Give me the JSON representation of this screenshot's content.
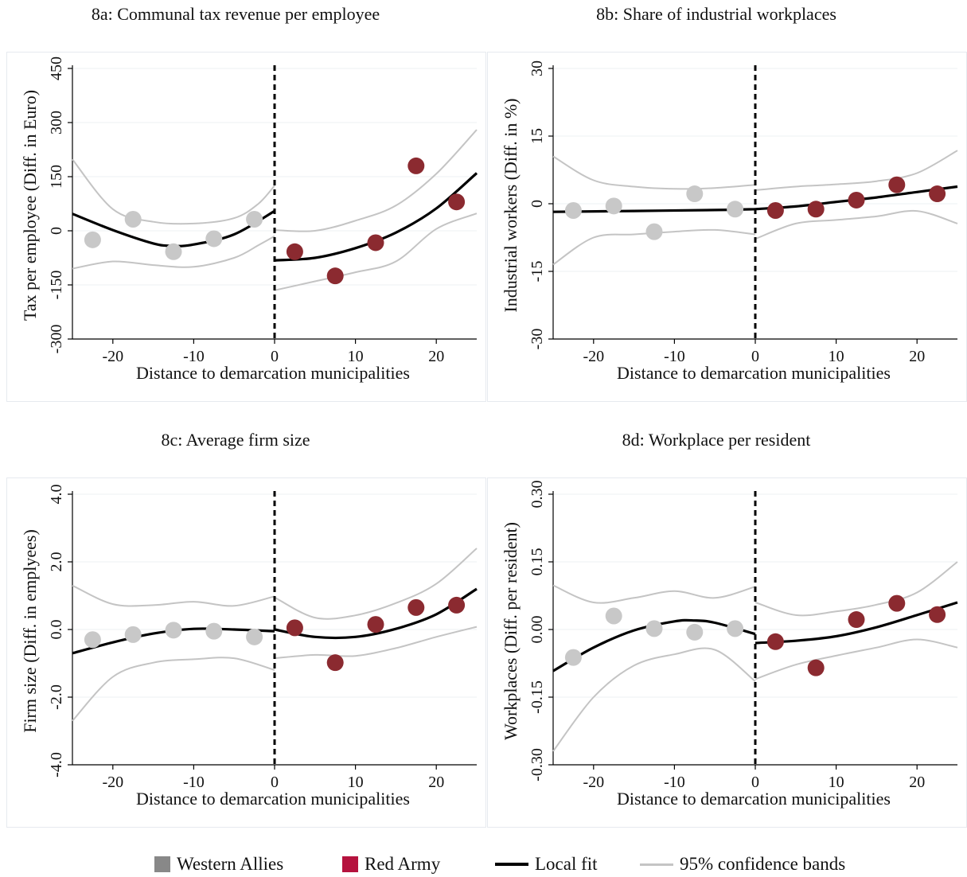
{
  "colors": {
    "western": "#c8c8c8",
    "western_legend": "#888888",
    "red": "#8b2a30",
    "red_legend": "#b5123e",
    "fit": "#000000",
    "band": "#c4c4c4",
    "grid": "#eef0f3"
  },
  "legend": {
    "western": "Western Allies",
    "red": "Red Army",
    "fit": "Local fit",
    "band": "95% confidence bands"
  },
  "chart_data": [
    {
      "id": "a",
      "type": "scatter",
      "title": "8a: Communal tax revenue per employee",
      "xlabel": "Distance to demarcation municipalities",
      "ylabel": "Tax per employee (Diff. in Euro)",
      "xlim": [
        -25,
        25
      ],
      "ylim": [
        -300,
        450
      ],
      "xticks": [
        -20,
        -10,
        0,
        10,
        20
      ],
      "xtick_labels": [
        "-20",
        "-10",
        "0",
        "10",
        "20"
      ],
      "yticks": [
        -300,
        -150,
        0,
        150,
        300,
        450
      ],
      "ytick_labels": [
        "-300",
        "-150",
        "0",
        "150",
        "300",
        "450"
      ],
      "grid": true,
      "cutoff": 0,
      "western_points": [
        [
          -22.5,
          -25
        ],
        [
          -17.5,
          32
        ],
        [
          -12.5,
          -58
        ],
        [
          -7.5,
          -22
        ],
        [
          -2.5,
          32
        ]
      ],
      "red_points": [
        [
          2.5,
          -58
        ],
        [
          7.5,
          -125
        ],
        [
          12.5,
          -33
        ],
        [
          17.5,
          180
        ],
        [
          22.5,
          80
        ]
      ],
      "left_fit": [
        [
          -25,
          47
        ],
        [
          -20,
          2
        ],
        [
          -15,
          -35
        ],
        [
          -12.5,
          -42
        ],
        [
          -10,
          -38
        ],
        [
          -5,
          -10
        ],
        [
          0,
          55
        ]
      ],
      "left_upper": [
        [
          -25,
          198
        ],
        [
          -20,
          60
        ],
        [
          -15,
          25
        ],
        [
          -10,
          20
        ],
        [
          -5,
          35
        ],
        [
          -2,
          75
        ],
        [
          0,
          125
        ]
      ],
      "left_lower": [
        [
          -25,
          -105
        ],
        [
          -20,
          -85
        ],
        [
          -15,
          -95
        ],
        [
          -10,
          -100
        ],
        [
          -5,
          -75
        ],
        [
          -2,
          -40
        ],
        [
          0,
          -15
        ]
      ],
      "right_fit": [
        [
          0,
          -82
        ],
        [
          5,
          -75
        ],
        [
          10,
          -48
        ],
        [
          15,
          -5
        ],
        [
          20,
          62
        ],
        [
          25,
          160
        ]
      ],
      "right_upper": [
        [
          0,
          2
        ],
        [
          5,
          0
        ],
        [
          10,
          28
        ],
        [
          15,
          70
        ],
        [
          20,
          158
        ],
        [
          25,
          280
        ]
      ],
      "right_lower": [
        [
          0,
          -165
        ],
        [
          5,
          -140
        ],
        [
          10,
          -115
        ],
        [
          15,
          -85
        ],
        [
          20,
          5
        ],
        [
          25,
          48
        ]
      ]
    },
    {
      "id": "b",
      "type": "scatter",
      "title": "8b: Share of industrial workplaces",
      "xlabel": "Distance to demarcation municipalities",
      "ylabel": "Industrial workers (Diff. in %)",
      "xlim": [
        -25,
        25
      ],
      "ylim": [
        -30,
        30
      ],
      "xticks": [
        -20,
        -10,
        0,
        10,
        20
      ],
      "xtick_labels": [
        "-20",
        "-10",
        "0",
        "10",
        "20"
      ],
      "yticks": [
        -30,
        -15,
        0,
        15,
        30
      ],
      "ytick_labels": [
        "-30",
        "-15",
        "0",
        "15",
        "30"
      ],
      "grid": true,
      "cutoff": 0,
      "western_points": [
        [
          -22.5,
          -1.5
        ],
        [
          -17.5,
          -0.5
        ],
        [
          -12.5,
          -6.2
        ],
        [
          -7.5,
          2.2
        ],
        [
          -2.5,
          -1.2
        ]
      ],
      "red_points": [
        [
          2.5,
          -1.5
        ],
        [
          7.5,
          -1.2
        ],
        [
          12.5,
          0.8
        ],
        [
          17.5,
          4.2
        ],
        [
          22.5,
          2.2
        ]
      ],
      "left_fit": [
        [
          -25,
          -1.8
        ],
        [
          -15,
          -1.6
        ],
        [
          -5,
          -1.4
        ],
        [
          0,
          -1.2
        ]
      ],
      "left_upper": [
        [
          -25,
          10.5
        ],
        [
          -20,
          5.2
        ],
        [
          -15,
          3.8
        ],
        [
          -10,
          3.3
        ],
        [
          -5,
          3.5
        ],
        [
          0,
          4.2
        ]
      ],
      "left_lower": [
        [
          -25,
          -13.5
        ],
        [
          -20,
          -7.5
        ],
        [
          -15,
          -6.8
        ],
        [
          -10,
          -6.2
        ],
        [
          -5,
          -5.8
        ],
        [
          0,
          -6.8
        ]
      ],
      "right_fit": [
        [
          0,
          -1.2
        ],
        [
          5,
          -0.6
        ],
        [
          10,
          0.4
        ],
        [
          15,
          1.4
        ],
        [
          20,
          2.6
        ],
        [
          25,
          3.8
        ]
      ],
      "right_upper": [
        [
          0,
          3
        ],
        [
          5,
          3.8
        ],
        [
          10,
          4.3
        ],
        [
          15,
          5
        ],
        [
          20,
          6.8
        ],
        [
          25,
          11.8
        ]
      ],
      "right_lower": [
        [
          0,
          -7.8
        ],
        [
          5,
          -4.4
        ],
        [
          10,
          -3.6
        ],
        [
          15,
          -2.8
        ],
        [
          20,
          -1.6
        ],
        [
          25,
          -4.4
        ]
      ]
    },
    {
      "id": "c",
      "type": "scatter",
      "title": "8c: Average firm size",
      "xlabel": "Distance to demarcation municipalities",
      "ylabel": "Firm size (Diff. in emplyees)",
      "xlim": [
        -25,
        25
      ],
      "ylim": [
        -4,
        4
      ],
      "xticks": [
        -20,
        -10,
        0,
        10,
        20
      ],
      "xtick_labels": [
        "-20",
        "-10",
        "0",
        "10",
        "20"
      ],
      "yticks": [
        -4,
        -2,
        0,
        2,
        4
      ],
      "ytick_labels": [
        "-4.0",
        "-2.0",
        "0.0",
        "2.0",
        "4.0"
      ],
      "grid": true,
      "cutoff": 0,
      "western_points": [
        [
          -22.5,
          -0.3
        ],
        [
          -17.5,
          -0.15
        ],
        [
          -12.5,
          -0.02
        ],
        [
          -7.5,
          -0.05
        ],
        [
          -2.5,
          -0.22
        ]
      ],
      "red_points": [
        [
          2.5,
          0.05
        ],
        [
          7.5,
          -0.98
        ],
        [
          12.5,
          0.15
        ],
        [
          17.5,
          0.65
        ],
        [
          22.5,
          0.72
        ]
      ],
      "left_fit": [
        [
          -25,
          -0.7
        ],
        [
          -20,
          -0.38
        ],
        [
          -15,
          -0.12
        ],
        [
          -10,
          0.02
        ],
        [
          -5,
          0
        ],
        [
          0,
          -0.05
        ]
      ],
      "left_upper": [
        [
          -25,
          1.3
        ],
        [
          -20,
          0.75
        ],
        [
          -15,
          0.72
        ],
        [
          -10,
          0.82
        ],
        [
          -5,
          0.7
        ],
        [
          0,
          0.98
        ]
      ],
      "left_lower": [
        [
          -25,
          -2.7
        ],
        [
          -20,
          -1.4
        ],
        [
          -15,
          -0.98
        ],
        [
          -10,
          -0.88
        ],
        [
          -5,
          -0.85
        ],
        [
          0,
          -1.2
        ]
      ],
      "right_fit": [
        [
          0,
          0
        ],
        [
          5,
          -0.22
        ],
        [
          10,
          -0.22
        ],
        [
          15,
          0.02
        ],
        [
          20,
          0.45
        ],
        [
          25,
          1.2
        ]
      ],
      "right_upper": [
        [
          0,
          0.95
        ],
        [
          5,
          0.35
        ],
        [
          10,
          0.42
        ],
        [
          15,
          0.78
        ],
        [
          20,
          1.35
        ],
        [
          25,
          2.4
        ]
      ],
      "right_lower": [
        [
          0,
          -0.85
        ],
        [
          5,
          -0.75
        ],
        [
          10,
          -0.78
        ],
        [
          15,
          -0.55
        ],
        [
          20,
          -0.22
        ],
        [
          25,
          0.08
        ]
      ]
    },
    {
      "id": "d",
      "type": "scatter",
      "title": "8d: Workplace per resident",
      "xlabel": "Distance to demarcation municipalities",
      "ylabel": "Workplaces (Diff. per resident)",
      "xlim": [
        -25,
        25
      ],
      "ylim": [
        -0.3,
        0.3
      ],
      "xticks": [
        -20,
        -10,
        0,
        10,
        20
      ],
      "xtick_labels": [
        "-20",
        "-10",
        "0",
        "10",
        "20"
      ],
      "yticks": [
        -0.3,
        -0.15,
        0,
        0.15,
        0.3
      ],
      "ytick_labels": [
        "-0.30",
        "-0.15",
        "0.00",
        "0.15",
        "0.30"
      ],
      "grid": true,
      "cutoff": 0,
      "western_points": [
        [
          -22.5,
          -0.062
        ],
        [
          -17.5,
          0.03
        ],
        [
          -12.5,
          0.002
        ],
        [
          -7.5,
          -0.006
        ],
        [
          -2.5,
          0.002
        ]
      ],
      "red_points": [
        [
          2.5,
          -0.027
        ],
        [
          7.5,
          -0.085
        ],
        [
          12.5,
          0.022
        ],
        [
          17.5,
          0.058
        ],
        [
          22.5,
          0.033
        ]
      ],
      "left_fit": [
        [
          -25,
          -0.092
        ],
        [
          -20,
          -0.04
        ],
        [
          -15,
          -0.002
        ],
        [
          -10,
          0.018
        ],
        [
          -7.5,
          0.02
        ],
        [
          -5,
          0.015
        ],
        [
          0,
          -0.01
        ]
      ],
      "left_upper": [
        [
          -25,
          0.098
        ],
        [
          -20,
          0.06
        ],
        [
          -15,
          0.07
        ],
        [
          -10,
          0.085
        ],
        [
          -5,
          0.07
        ],
        [
          0,
          0.095
        ]
      ],
      "left_lower": [
        [
          -25,
          -0.27
        ],
        [
          -20,
          -0.15
        ],
        [
          -15,
          -0.08
        ],
        [
          -10,
          -0.055
        ],
        [
          -5,
          -0.045
        ],
        [
          0,
          -0.115
        ]
      ],
      "right_fit": [
        [
          0,
          -0.03
        ],
        [
          5,
          -0.025
        ],
        [
          10,
          -0.015
        ],
        [
          15,
          0.005
        ],
        [
          20,
          0.032
        ],
        [
          25,
          0.06
        ]
      ],
      "right_upper": [
        [
          0,
          0.06
        ],
        [
          5,
          0.032
        ],
        [
          10,
          0.04
        ],
        [
          15,
          0.055
        ],
        [
          20,
          0.082
        ],
        [
          25,
          0.15
        ]
      ],
      "right_lower": [
        [
          0,
          -0.11
        ],
        [
          5,
          -0.078
        ],
        [
          10,
          -0.058
        ],
        [
          15,
          -0.04
        ],
        [
          20,
          -0.022
        ],
        [
          25,
          -0.04
        ]
      ]
    }
  ]
}
